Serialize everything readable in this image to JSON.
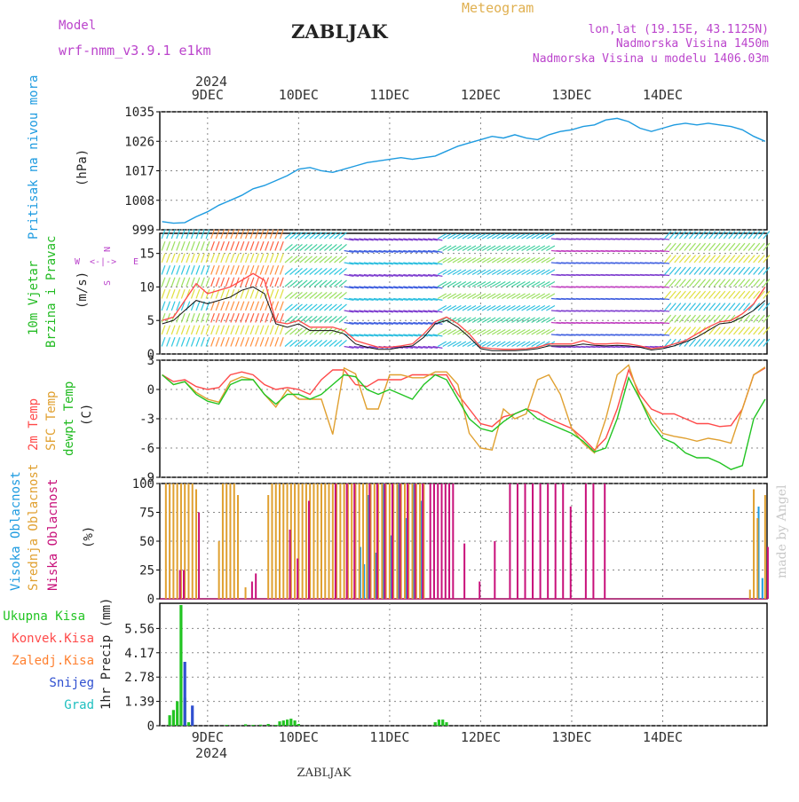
{
  "header": {
    "model_label": "Model",
    "model_value": "wrf-nmm_v3.9.1  e1km",
    "station": "ZABLJAK",
    "meteogram": "Meteogram",
    "lonlat": "lon,lat (19.15E, 43.1125N)",
    "elevation": "Nadmorska Visina 1450m",
    "model_elevation": "Nadmorska Visina u modelu 1406.03m",
    "credit": "made by Angel",
    "footer_station": "ZABLJAK",
    "year_top": "2024",
    "year_bottom": "2024"
  },
  "colors": {
    "pressure": "#1e9be0",
    "t2m": "#ff4a4a",
    "sfc": "#e0a030",
    "dew": "#22c422",
    "high_cloud": "#1e9be0",
    "mid_cloud": "#e0a030",
    "low_cloud": "#c8107a",
    "total_precip": "#22c422",
    "snow": "#3050d0",
    "conv": "#ff4a4a",
    "frozen": "#ff8030",
    "grad": "#20c0c0",
    "label_violet": "#bb44cc"
  },
  "axes": {
    "days": [
      "9DEC",
      "10DEC",
      "11DEC",
      "12DEC",
      "13DEC",
      "14DEC"
    ],
    "time_range_h": [
      -12.6,
      147.5
    ]
  },
  "chart_data": [
    {
      "type": "line",
      "name": "pressure",
      "ylabel_side": "Pritisak na nivou mora",
      "unit": "(hPa)",
      "ylim": [
        999,
        1035
      ],
      "yticks": [
        999,
        1008,
        1017,
        1026,
        1035
      ],
      "x_hours": [
        -12,
        -9,
        -6,
        -3,
        0,
        3,
        6,
        9,
        12,
        15,
        18,
        21,
        24,
        27,
        30,
        33,
        36,
        39,
        42,
        45,
        48,
        51,
        54,
        57,
        60,
        63,
        66,
        69,
        72,
        75,
        78,
        81,
        84,
        87,
        90,
        93,
        96,
        99,
        102,
        105,
        108,
        111,
        114,
        117,
        120,
        123,
        126,
        129,
        132,
        135,
        138,
        141,
        144,
        147
      ],
      "series": [
        {
          "values": [
            1001.5,
            1001,
            1001.2,
            1003,
            1004.5,
            1006.5,
            1008,
            1009.5,
            1011.5,
            1012.5,
            1014,
            1015.5,
            1017.5,
            1018,
            1017,
            1016.5,
            1017.5,
            1018.5,
            1019.5,
            1020,
            1020.5,
            1021,
            1020.5,
            1021,
            1021.5,
            1023,
            1024.5,
            1025.5,
            1026.5,
            1027.5,
            1027,
            1028,
            1027,
            1026.5,
            1028,
            1029,
            1029.5,
            1030.5,
            1031,
            1032.5,
            1033,
            1032,
            1030,
            1029,
            1030,
            1031,
            1031.5,
            1031,
            1031.5,
            1031,
            1030.5,
            1029.5,
            1027.5,
            1026
          ]
        }
      ]
    },
    {
      "type": "line",
      "name": "wind",
      "ylabel_side": "10m Vjetar Brzina i Pravac",
      "unit": "(m/s)",
      "ylim": [
        0,
        18
      ],
      "yticks": [
        0,
        5,
        10,
        15
      ],
      "x_hours": [
        -12,
        -9,
        -6,
        -3,
        0,
        3,
        6,
        9,
        12,
        15,
        18,
        21,
        24,
        27,
        30,
        33,
        36,
        39,
        42,
        45,
        48,
        51,
        54,
        57,
        60,
        63,
        66,
        69,
        72,
        75,
        78,
        81,
        84,
        87,
        90,
        93,
        96,
        99,
        102,
        105,
        108,
        111,
        114,
        117,
        120,
        123,
        126,
        129,
        132,
        135,
        138,
        141,
        144,
        147
      ],
      "series": [
        {
          "values": [
            5,
            5.5,
            8,
            10.5,
            9,
            9.5,
            10,
            11,
            12,
            11,
            4.8,
            4.5,
            5,
            4,
            4,
            4,
            3.5,
            2,
            1.5,
            1,
            1,
            1.2,
            1.5,
            3,
            4.8,
            5.5,
            4.5,
            3,
            1,
            0.8,
            0.7,
            0.7,
            0.8,
            1,
            1.5,
            1.5,
            1.5,
            2,
            1.5,
            1.5,
            1.6,
            1.5,
            1.2,
            0.8,
            1,
            1.5,
            2,
            3,
            4,
            4.8,
            5,
            6,
            7.5,
            10
          ]
        },
        {
          "values": [
            4.5,
            5,
            6.5,
            8,
            7.5,
            8,
            8.5,
            9.5,
            10,
            9,
            4.5,
            4,
            4.5,
            3.5,
            3.5,
            3.5,
            3,
            1.5,
            1,
            0.7,
            0.7,
            1,
            1.2,
            2.5,
            4.5,
            5,
            4,
            2.5,
            0.8,
            0.5,
            0.5,
            0.5,
            0.6,
            0.8,
            1.2,
            1.2,
            1.2,
            1.5,
            1.3,
            1.2,
            1.3,
            1.2,
            1,
            0.6,
            0.8,
            1.2,
            1.8,
            2.5,
            3.5,
            4.5,
            4.7,
            5.5,
            6.5,
            8
          ]
        }
      ]
    },
    {
      "type": "line",
      "name": "temperature",
      "ylabel_side": [
        "2m Temp",
        "SFC Temp",
        "dewpt Temp"
      ],
      "unit": "(C)",
      "ylim": [
        -9,
        3
      ],
      "yticks": [
        -9,
        -6,
        -3,
        0,
        3
      ],
      "x_hours": [
        -12,
        -9,
        -6,
        -3,
        0,
        3,
        6,
        9,
        12,
        15,
        18,
        21,
        24,
        27,
        30,
        33,
        36,
        39,
        42,
        45,
        48,
        51,
        54,
        57,
        60,
        63,
        66,
        69,
        72,
        75,
        78,
        81,
        84,
        87,
        90,
        93,
        96,
        99,
        102,
        105,
        108,
        111,
        114,
        117,
        120,
        123,
        126,
        129,
        132,
        135,
        138,
        141,
        144,
        147
      ],
      "series": [
        {
          "name": "2m Temp",
          "values": [
            1.5,
            0.8,
            1,
            0.3,
            0,
            0.2,
            1.5,
            1.8,
            1.5,
            0.5,
            0,
            0.2,
            0,
            -0.5,
            1,
            2,
            2,
            0.5,
            0.3,
            1,
            1,
            1,
            1.5,
            1.5,
            1.5,
            1.5,
            -0.5,
            -2,
            -3.5,
            -3.8,
            -2.8,
            -2.5,
            -2,
            -2.3,
            -3,
            -3.5,
            -4,
            -5,
            -6.2,
            -5,
            -2,
            2,
            -0.5,
            -2,
            -2.5,
            -2.5,
            -3,
            -3.5,
            -3.5,
            -3.8,
            -3.7,
            -2,
            1.5,
            2.2
          ]
        },
        {
          "name": "SFC Temp",
          "values": [
            1.5,
            0.5,
            0.8,
            -0.3,
            -1,
            -1.3,
            0.8,
            1.3,
            1,
            -0.5,
            -1.8,
            0,
            -1,
            -1,
            -1,
            -4.6,
            2.2,
            1.6,
            -2,
            -2,
            1.5,
            1.5,
            1.2,
            1.2,
            1.8,
            1.8,
            0.5,
            -4.5,
            -6,
            -6.2,
            -2,
            -3,
            -2.5,
            1,
            1.5,
            -0.5,
            -4,
            -5.5,
            -6.5,
            -3,
            1.5,
            2.5,
            -1,
            -3,
            -4.5,
            -4.8,
            -5,
            -5.3,
            -5,
            -5.2,
            -5.5,
            -2,
            1.5,
            2.3
          ]
        },
        {
          "name": "dewpt Temp",
          "values": [
            1.5,
            0.5,
            0.8,
            -0.5,
            -1.2,
            -1.5,
            0.5,
            1,
            1,
            -0.5,
            -1.5,
            -0.5,
            -0.5,
            -1,
            -0.5,
            0.5,
            1.5,
            1.3,
            0,
            -0.5,
            0,
            -0.5,
            -1,
            0.5,
            1.5,
            1,
            -1,
            -3,
            -4,
            -4.3,
            -3.3,
            -2.5,
            -2,
            -3,
            -3.5,
            -4,
            -4.5,
            -5.3,
            -6.4,
            -6,
            -3,
            1.2,
            -1,
            -3.5,
            -5,
            -5.5,
            -6.5,
            -7,
            -7,
            -7.5,
            -8.2,
            -7.8,
            -3,
            -1
          ]
        }
      ]
    },
    {
      "type": "bar",
      "name": "cloud_cover",
      "ylabel_side": [
        "Visoka Oblacnost",
        "Srednja Oblacnost",
        "Niska Oblacnost"
      ],
      "unit": "(%)",
      "ylim": [
        0,
        100
      ],
      "yticks": [
        0,
        25,
        50,
        75,
        100
      ],
      "series": [
        {
          "name": "Visoka Oblacnost",
          "x_hours": [
            40,
            41,
            42,
            44,
            46,
            48,
            50,
            52,
            54,
            56,
            60,
            145,
            146
          ],
          "values": [
            45,
            30,
            90,
            40,
            100,
            55,
            100,
            70,
            100,
            85,
            0,
            80,
            18
          ]
        },
        {
          "name": "Srednja Oblacnost",
          "x_hours": [
            -11,
            -10,
            -9,
            -8,
            -7,
            -6,
            -5,
            -4,
            -3,
            3,
            4,
            5,
            6,
            7,
            8,
            10,
            16,
            17,
            18,
            19,
            20,
            21,
            22,
            23,
            24,
            25,
            26,
            27,
            28,
            29,
            30,
            31,
            32,
            33,
            34,
            35,
            36,
            37,
            38,
            39,
            40,
            41,
            42,
            43,
            44,
            45,
            46,
            47,
            48,
            49,
            50,
            51,
            52,
            53,
            54,
            55,
            56,
            57,
            143,
            144,
            145,
            147
          ],
          "values": [
            100,
            100,
            100,
            100,
            100,
            100,
            100,
            100,
            95,
            50,
            100,
            100,
            100,
            100,
            90,
            10,
            90,
            100,
            100,
            100,
            100,
            100,
            100,
            100,
            100,
            100,
            100,
            100,
            100,
            100,
            100,
            100,
            100,
            100,
            100,
            100,
            100,
            100,
            100,
            100,
            100,
            100,
            100,
            100,
            100,
            100,
            100,
            100,
            100,
            100,
            100,
            100,
            100,
            100,
            100,
            100,
            100,
            100,
            8,
            95,
            70,
            90
          ]
        },
        {
          "name": "Niska Oblacnost",
          "x_hours": [
            -7,
            -6,
            -2,
            12,
            13,
            22,
            24,
            27,
            34,
            37,
            39,
            43,
            45,
            47,
            49,
            51,
            53,
            55,
            57,
            59,
            60,
            61,
            62,
            63,
            64,
            65,
            68,
            72,
            76,
            80,
            82,
            84,
            86,
            88,
            90,
            92,
            94,
            96,
            100,
            102,
            105,
            148
          ],
          "values": [
            25,
            25,
            75,
            15,
            22,
            60,
            35,
            85,
            100,
            100,
            100,
            100,
            100,
            100,
            100,
            100,
            100,
            100,
            100,
            100,
            100,
            100,
            100,
            100,
            100,
            100,
            48,
            15,
            50,
            100,
            100,
            100,
            100,
            100,
            100,
            100,
            100,
            80,
            100,
            100,
            100,
            45
          ]
        }
      ]
    },
    {
      "type": "bar",
      "name": "precipitation",
      "ylabel_side": "1hr Precip (mm)",
      "legend": [
        "Ukupna Kisa",
        "Konvek.Kisa",
        "Zaledj.Kisa",
        "Snijeg",
        "Grad"
      ],
      "ylim": [
        0,
        7
      ],
      "yticks": [
        0,
        1.39,
        2.78,
        4.17,
        5.56
      ],
      "series": [
        {
          "name": "Ukupna Kisa",
          "x_hours": [
            -10,
            -9,
            -8,
            -7,
            -6,
            -5,
            5,
            10,
            12,
            14,
            16,
            18,
            19,
            20,
            21,
            22,
            23,
            24,
            60,
            61,
            62,
            63
          ],
          "values": [
            0.6,
            0.9,
            1.4,
            6.9,
            1.6,
            0.2,
            0.05,
            0.08,
            0.05,
            0.06,
            0.1,
            0.05,
            0.25,
            0.3,
            0.35,
            0.4,
            0.3,
            0.1,
            0.2,
            0.35,
            0.35,
            0.2
          ]
        },
        {
          "name": "Snijeg",
          "x_hours": [
            -6,
            -4
          ],
          "values": [
            3.65,
            1.15
          ]
        }
      ]
    }
  ]
}
